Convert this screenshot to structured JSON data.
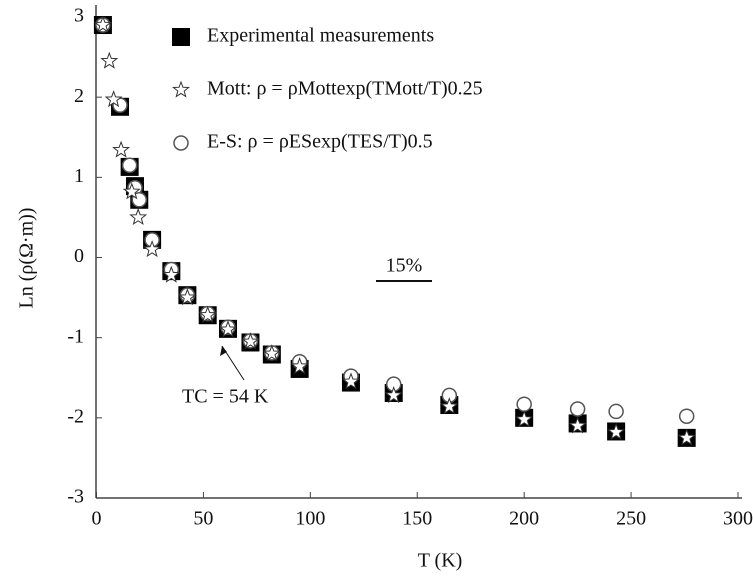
{
  "chart_data": {
    "type": "scatter",
    "xlabel": "T (K)",
    "ylabel": "Ln (ρ(Ω·m))",
    "xlim": [
      0,
      300
    ],
    "ylim": [
      -3,
      3
    ],
    "xticks": [
      0,
      50,
      100,
      150,
      200,
      250,
      300
    ],
    "yticks": [
      -3,
      -2,
      -1,
      0,
      1,
      2,
      3
    ],
    "series": [
      {
        "name": "Experimental measurements",
        "marker": "square",
        "color": "#000000",
        "x": [
          3,
          11,
          15.5,
          18,
          20,
          26,
          35,
          42.5,
          52,
          61.5,
          72,
          82,
          95,
          119,
          139,
          165,
          200,
          225,
          243,
          276
        ],
        "values": [
          2.9,
          1.88,
          1.13,
          0.89,
          0.72,
          0.22,
          -0.17,
          -0.47,
          -0.72,
          -0.89,
          -1.06,
          -1.21,
          -1.39,
          -1.56,
          -1.69,
          -1.84,
          -2.0,
          -2.07,
          -2.17,
          -2.25
        ]
      },
      {
        "name": "E-S: ρ = ρESexp(TES/T)0.5",
        "marker": "circle",
        "color": "#555555",
        "x": [
          3,
          11,
          15.5,
          18,
          20,
          26,
          35,
          42.5,
          52,
          61.5,
          72,
          82,
          95,
          119,
          139,
          165,
          200,
          225,
          243,
          276
        ],
        "values": [
          2.9,
          1.9,
          1.15,
          0.87,
          0.72,
          0.22,
          -0.15,
          -0.47,
          -0.7,
          -0.87,
          -1.04,
          -1.19,
          -1.3,
          -1.48,
          -1.58,
          -1.72,
          -1.83,
          -1.89,
          -1.92,
          -1.98
        ]
      },
      {
        "name": "Mott: ρ = ρMottexp(TMott/T)0.25",
        "marker": "star",
        "color": "#333333",
        "x": [
          3,
          6,
          8,
          11.5,
          16.5,
          19.5,
          26,
          35,
          42.5,
          52,
          61.5,
          72,
          82,
          95,
          119,
          139,
          165,
          200,
          225,
          243,
          276
        ],
        "values": [
          2.9,
          2.45,
          1.97,
          1.34,
          0.82,
          0.5,
          0.1,
          -0.22,
          -0.5,
          -0.72,
          -0.9,
          -1.05,
          -1.2,
          -1.36,
          -1.55,
          -1.72,
          -1.86,
          -2.02,
          -2.1,
          -2.18,
          -2.25
        ]
      }
    ],
    "annotations": [
      "15%",
      "TC = 54 K"
    ]
  }
}
